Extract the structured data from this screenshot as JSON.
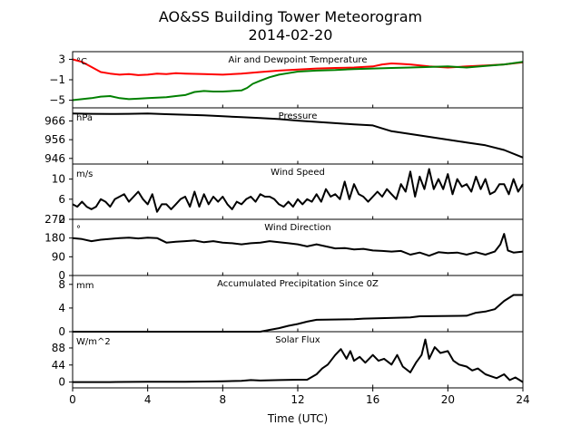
{
  "figure": {
    "title_line1": "AO&SS Building Tower Meteorogram",
    "title_line2": "2014-02-20",
    "xlabel": "Time (UTC)",
    "xlim": [
      0,
      24
    ],
    "xticks": [
      0,
      4,
      8,
      12,
      16,
      20,
      24
    ]
  },
  "chart_data": [
    {
      "type": "line",
      "title": "Air and Dewpoint Temperature",
      "unit": "°C",
      "ylim": [
        -6.5,
        4.5
      ],
      "yticks": [
        3,
        -1,
        -5
      ],
      "series": [
        {
          "color": "#ff0000",
          "x": [
            0,
            0.5,
            1,
            1.5,
            2,
            2.5,
            3,
            3.5,
            4,
            4.5,
            5,
            5.5,
            6,
            7,
            8,
            9,
            10,
            11,
            12,
            13,
            14,
            15,
            16,
            16.5,
            17,
            17.5,
            18,
            19,
            20,
            21,
            22,
            23,
            24
          ],
          "values": [
            3,
            2.5,
            1.5,
            0.5,
            0.2,
            0,
            0.1,
            -0.1,
            0,
            0.2,
            0.1,
            0.3,
            0.2,
            0.1,
            0,
            0.2,
            0.5,
            0.8,
            1,
            1.2,
            1.3,
            1.4,
            1.6,
            2,
            2.2,
            2.1,
            2,
            1.6,
            1.4,
            1.6,
            1.8,
            2,
            2.4
          ]
        },
        {
          "color": "#008000",
          "x": [
            0,
            0.5,
            1,
            1.5,
            2,
            2.5,
            3,
            3.5,
            4,
            4.5,
            5,
            5.5,
            6,
            6.5,
            7,
            7.5,
            8,
            8.5,
            9,
            9.3,
            9.6,
            10,
            10.5,
            11,
            11.5,
            12,
            13,
            14,
            15,
            16,
            17,
            18,
            19,
            20,
            21,
            22,
            23,
            24
          ],
          "values": [
            -5,
            -4.8,
            -4.6,
            -4.3,
            -4.2,
            -4.6,
            -4.8,
            -4.7,
            -4.6,
            -4.5,
            -4.4,
            -4.2,
            -4,
            -3.4,
            -3.2,
            -3.3,
            -3.3,
            -3.2,
            -3.1,
            -2.6,
            -1.8,
            -1.2,
            -0.5,
            0,
            0.3,
            0.6,
            0.8,
            0.9,
            1.1,
            1.2,
            1.3,
            1.4,
            1.5,
            1.6,
            1.4,
            1.7,
            2,
            2.5
          ]
        }
      ]
    },
    {
      "type": "line",
      "title": "Pressure",
      "unit": "hPa",
      "ylim": [
        943,
        973
      ],
      "yticks": [
        966,
        956,
        946
      ],
      "series": [
        {
          "color": "#000000",
          "x": [
            0,
            1,
            2,
            3,
            4,
            5,
            6,
            7,
            8,
            9,
            10,
            11,
            12,
            13,
            14,
            15,
            16,
            16.5,
            17,
            18,
            19,
            20,
            21,
            22,
            23,
            24
          ],
          "values": [
            970,
            969.8,
            969.7,
            969.8,
            970,
            969.6,
            969.3,
            969,
            968.5,
            968,
            967.6,
            967,
            966.2,
            965.5,
            964.8,
            964.2,
            963.6,
            962,
            960.5,
            959,
            957.5,
            956,
            954.5,
            953,
            950.5,
            946.5
          ]
        }
      ]
    },
    {
      "type": "line",
      "title": "Wind Speed",
      "unit": "m/s",
      "ylim": [
        2,
        13
      ],
      "yticks": [
        10,
        6,
        2
      ],
      "series": [
        {
          "color": "#000000",
          "x": [
            0,
            0.25,
            0.5,
            0.75,
            1,
            1.25,
            1.5,
            1.75,
            2,
            2.25,
            2.5,
            2.75,
            3,
            3.25,
            3.5,
            3.75,
            4,
            4.25,
            4.5,
            4.75,
            5,
            5.25,
            5.5,
            5.75,
            6,
            6.25,
            6.5,
            6.75,
            7,
            7.25,
            7.5,
            7.75,
            8,
            8.25,
            8.5,
            8.75,
            9,
            9.25,
            9.5,
            9.75,
            10,
            10.25,
            10.5,
            10.75,
            11,
            11.25,
            11.5,
            11.75,
            12,
            12.25,
            12.5,
            12.75,
            13,
            13.25,
            13.5,
            13.75,
            14,
            14.25,
            14.5,
            14.75,
            15,
            15.25,
            15.5,
            15.75,
            16,
            16.25,
            16.5,
            16.75,
            17,
            17.25,
            17.5,
            17.75,
            18,
            18.25,
            18.5,
            18.75,
            19,
            19.25,
            19.5,
            19.75,
            20,
            20.25,
            20.5,
            20.75,
            21,
            21.25,
            21.5,
            21.75,
            22,
            22.25,
            22.5,
            22.75,
            23,
            23.25,
            23.5,
            23.75,
            24
          ],
          "values": [
            5,
            4.5,
            5.5,
            4.5,
            4,
            4.5,
            6,
            5.5,
            4.5,
            6,
            6.5,
            7,
            5.5,
            6.5,
            7.5,
            6,
            5,
            7,
            3.5,
            5,
            5,
            4,
            5,
            6,
            6.5,
            4.5,
            7.5,
            4.5,
            7,
            5,
            6.5,
            5.5,
            6.5,
            5,
            4,
            5.5,
            5,
            6,
            6.5,
            5.5,
            7,
            6.5,
            6.5,
            6,
            5,
            4.5,
            5.5,
            4.5,
            6,
            5,
            6,
            5.5,
            7,
            5.5,
            8,
            6.5,
            7,
            6,
            9.5,
            6,
            9,
            7,
            6.5,
            5.5,
            6.5,
            7.5,
            6.5,
            8,
            7,
            6,
            9,
            7.5,
            11.5,
            6.5,
            10.5,
            8,
            12,
            8,
            10,
            8,
            11,
            7,
            10,
            8.5,
            9,
            7.5,
            10.5,
            8,
            10,
            7,
            7.5,
            9,
            9,
            7,
            10,
            7.5,
            9
          ]
        }
      ]
    },
    {
      "type": "line",
      "title": "Wind Direction",
      "unit": "°",
      "ylim": [
        0,
        270
      ],
      "yticks": [
        270,
        180,
        90,
        0
      ],
      "series": [
        {
          "color": "#000000",
          "x": [
            0,
            0.5,
            1,
            1.5,
            2,
            2.5,
            3,
            3.5,
            4,
            4.5,
            5,
            5.5,
            6,
            6.5,
            7,
            7.5,
            8,
            8.5,
            9,
            9.5,
            10,
            10.5,
            11,
            11.5,
            12,
            12.5,
            13,
            13.5,
            14,
            14.5,
            15,
            15.5,
            16,
            16.5,
            17,
            17.5,
            18,
            18.5,
            19,
            19.5,
            20,
            20.5,
            21,
            21.5,
            22,
            22.5,
            22.8,
            23,
            23.2,
            23.5,
            24
          ],
          "values": [
            180,
            175,
            165,
            172,
            176,
            180,
            182,
            178,
            182,
            180,
            158,
            162,
            165,
            168,
            160,
            165,
            158,
            155,
            150,
            155,
            158,
            165,
            160,
            155,
            150,
            140,
            150,
            140,
            130,
            132,
            125,
            128,
            120,
            118,
            115,
            118,
            100,
            110,
            95,
            112,
            108,
            110,
            100,
            112,
            100,
            115,
            150,
            200,
            120,
            110,
            115
          ]
        }
      ]
    },
    {
      "type": "line",
      "title": "Accumulated Precipitation Since 0Z",
      "unit": "mm",
      "ylim": [
        0,
        9.5
      ],
      "yticks": [
        8,
        4,
        0
      ],
      "series": [
        {
          "color": "#000000",
          "x": [
            0,
            10,
            10.5,
            11,
            11.5,
            12,
            12.5,
            13,
            15,
            15.5,
            18,
            18.5,
            21,
            21.5,
            22,
            22.5,
            23,
            23.5,
            24
          ],
          "values": [
            0,
            0,
            0.3,
            0.6,
            1,
            1.3,
            1.7,
            2,
            2.1,
            2.2,
            2.4,
            2.6,
            2.7,
            3.2,
            3.4,
            3.8,
            5.2,
            6.2,
            6.2
          ]
        }
      ]
    },
    {
      "type": "line",
      "title": "Solar Flux",
      "unit": "W/m^2",
      "ylim": [
        -15,
        130
      ],
      "yticks": [
        88,
        44,
        0
      ],
      "series": [
        {
          "color": "#000000",
          "x": [
            0,
            2,
            4,
            6,
            8,
            9,
            9.5,
            10,
            11,
            12,
            12.5,
            13,
            13.3,
            13.6,
            14,
            14.3,
            14.6,
            14.8,
            15,
            15.3,
            15.6,
            16,
            16.3,
            16.6,
            17,
            17.3,
            17.6,
            18,
            18.3,
            18.6,
            18.8,
            19,
            19.3,
            19.6,
            20,
            20.3,
            20.6,
            21,
            21.3,
            21.6,
            22,
            22.3,
            22.6,
            23,
            23.3,
            23.6,
            24
          ],
          "values": [
            0,
            0,
            1,
            1,
            2,
            3,
            5,
            4,
            5,
            6,
            6,
            20,
            35,
            45,
            70,
            85,
            60,
            80,
            55,
            65,
            50,
            70,
            55,
            60,
            45,
            70,
            40,
            25,
            50,
            70,
            110,
            60,
            90,
            75,
            80,
            55,
            45,
            40,
            30,
            35,
            20,
            15,
            10,
            20,
            5,
            12,
            0
          ]
        }
      ]
    }
  ]
}
